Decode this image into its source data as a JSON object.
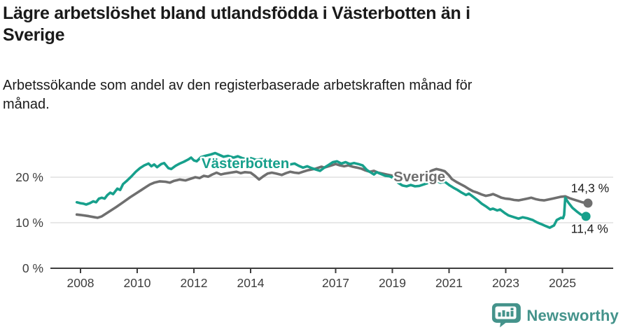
{
  "header": {
    "title_line1": "Lägre arbetslöshet bland utlandsfödda i Västerbotten än i",
    "title_line2": "Sverige",
    "subtitle_line1": "Arbetssökande som andel av den registerbaserade arbetskraften månad för",
    "subtitle_line2": "månad."
  },
  "chart_data": {
    "type": "line",
    "title": "Lägre arbetslöshet bland utlandsfödda i Västerbotten än i Sverige",
    "subtitle": "Arbetssökande som andel av den registerbaserade arbetskraften månad för månad.",
    "unit": "%",
    "grid": "horizontal",
    "x_axis": {
      "tick_years": [
        2008,
        2010,
        2012,
        2014,
        2017,
        2019,
        2021,
        2023,
        2025
      ]
    },
    "y_axis": {
      "ticks": [
        {
          "value": 0,
          "label": "0 %"
        },
        {
          "value": 10,
          "label": "10 %"
        },
        {
          "value": 20,
          "label": "20 %"
        }
      ],
      "range": [
        0,
        28
      ],
      "gridlines_at": [
        10,
        20
      ]
    },
    "colors": {
      "vasterbotten": "#17a08c",
      "sverige": "#6f6f6f",
      "axis": "#3d3d3d",
      "gridline": "#d9d9d9",
      "value_label": "#1d1d1d"
    },
    "series": [
      {
        "name": "Sverige",
        "color": "#6f6f6f",
        "label_anchor": [
          2019.04,
          19.1
        ],
        "end_label": "14,3 %",
        "end_label_anchor": [
          2025.3,
          16.7
        ],
        "points": [
          [
            2007.87,
            11.8
          ],
          [
            2008.0,
            11.7
          ],
          [
            2008.25,
            11.5
          ],
          [
            2008.5,
            11.2
          ],
          [
            2008.6,
            11.1
          ],
          [
            2008.75,
            11.4
          ],
          [
            2009.0,
            12.4
          ],
          [
            2009.25,
            13.4
          ],
          [
            2009.5,
            14.5
          ],
          [
            2009.75,
            15.6
          ],
          [
            2010.0,
            16.6
          ],
          [
            2010.15,
            17.2
          ],
          [
            2010.3,
            17.8
          ],
          [
            2010.45,
            18.4
          ],
          [
            2010.6,
            18.8
          ],
          [
            2010.8,
            19.1
          ],
          [
            2011.0,
            19.0
          ],
          [
            2011.15,
            18.8
          ],
          [
            2011.3,
            19.2
          ],
          [
            2011.5,
            19.5
          ],
          [
            2011.7,
            19.3
          ],
          [
            2011.9,
            19.7
          ],
          [
            2012.05,
            20.0
          ],
          [
            2012.2,
            19.8
          ],
          [
            2012.35,
            20.3
          ],
          [
            2012.5,
            20.1
          ],
          [
            2012.65,
            20.6
          ],
          [
            2012.8,
            21.0
          ],
          [
            2012.95,
            20.6
          ],
          [
            2013.1,
            20.8
          ],
          [
            2013.3,
            21.0
          ],
          [
            2013.5,
            21.2
          ],
          [
            2013.65,
            20.9
          ],
          [
            2013.8,
            21.1
          ],
          [
            2014.0,
            21.0
          ],
          [
            2014.15,
            20.3
          ],
          [
            2014.3,
            19.5
          ],
          [
            2014.45,
            20.2
          ],
          [
            2014.6,
            20.8
          ],
          [
            2014.75,
            21.0
          ],
          [
            2014.9,
            20.8
          ],
          [
            2015.1,
            20.5
          ],
          [
            2015.25,
            20.9
          ],
          [
            2015.4,
            21.2
          ],
          [
            2015.55,
            21.0
          ],
          [
            2015.7,
            20.9
          ],
          [
            2015.85,
            21.2
          ],
          [
            2016.0,
            21.5
          ],
          [
            2016.15,
            21.7
          ],
          [
            2016.3,
            21.9
          ],
          [
            2016.5,
            22.3
          ],
          [
            2016.6,
            22.1
          ],
          [
            2016.75,
            22.4
          ],
          [
            2016.9,
            22.7
          ],
          [
            2017.0,
            22.9
          ],
          [
            2017.15,
            22.6
          ],
          [
            2017.3,
            22.4
          ],
          [
            2017.45,
            22.6
          ],
          [
            2017.6,
            22.3
          ],
          [
            2017.75,
            22.1
          ],
          [
            2017.9,
            21.9
          ],
          [
            2018.05,
            21.5
          ],
          [
            2018.2,
            21.2
          ],
          [
            2018.35,
            21.4
          ],
          [
            2018.5,
            21.0
          ],
          [
            2018.65,
            20.8
          ],
          [
            2018.8,
            20.6
          ],
          [
            2018.95,
            20.4
          ],
          [
            2019.1,
            20.2
          ],
          [
            2019.3,
            20.0
          ],
          [
            2019.5,
            19.9
          ],
          [
            2019.7,
            20.0
          ],
          [
            2019.9,
            20.2
          ],
          [
            2020.1,
            20.5
          ],
          [
            2020.25,
            21.0
          ],
          [
            2020.4,
            21.5
          ],
          [
            2020.55,
            21.8
          ],
          [
            2020.7,
            21.6
          ],
          [
            2020.85,
            21.3
          ],
          [
            2021.0,
            20.4
          ],
          [
            2021.1,
            19.6
          ],
          [
            2021.25,
            19.0
          ],
          [
            2021.4,
            18.5
          ],
          [
            2021.55,
            18.0
          ],
          [
            2021.7,
            17.4
          ],
          [
            2021.85,
            16.9
          ],
          [
            2022.0,
            16.6
          ],
          [
            2022.15,
            16.2
          ],
          [
            2022.3,
            15.9
          ],
          [
            2022.45,
            16.1
          ],
          [
            2022.55,
            16.3
          ],
          [
            2022.7,
            15.9
          ],
          [
            2022.85,
            15.5
          ],
          [
            2023.0,
            15.3
          ],
          [
            2023.15,
            15.2
          ],
          [
            2023.3,
            15.0
          ],
          [
            2023.45,
            14.9
          ],
          [
            2023.6,
            15.1
          ],
          [
            2023.75,
            15.3
          ],
          [
            2023.9,
            15.5
          ],
          [
            2024.05,
            15.2
          ],
          [
            2024.2,
            15.0
          ],
          [
            2024.35,
            14.9
          ],
          [
            2024.5,
            15.1
          ],
          [
            2024.65,
            15.3
          ],
          [
            2024.8,
            15.5
          ],
          [
            2024.95,
            15.7
          ],
          [
            2025.1,
            15.8
          ],
          [
            2025.25,
            15.4
          ],
          [
            2025.4,
            15.1
          ],
          [
            2025.55,
            14.8
          ],
          [
            2025.7,
            14.5
          ],
          [
            2025.9,
            14.3
          ]
        ]
      },
      {
        "name": "Västerbotten",
        "color": "#17a08c",
        "label_anchor": [
          2012.27,
          22.0
        ],
        "end_label": "11,4 %",
        "end_label_anchor": [
          2025.3,
          7.8
        ],
        "points": [
          [
            2007.87,
            14.5
          ],
          [
            2008.0,
            14.3
          ],
          [
            2008.1,
            14.2
          ],
          [
            2008.2,
            14.0
          ],
          [
            2008.33,
            14.3
          ],
          [
            2008.45,
            14.7
          ],
          [
            2008.55,
            14.5
          ],
          [
            2008.65,
            15.3
          ],
          [
            2008.75,
            15.5
          ],
          [
            2008.85,
            15.3
          ],
          [
            2008.95,
            16.1
          ],
          [
            2009.05,
            16.6
          ],
          [
            2009.15,
            16.3
          ],
          [
            2009.3,
            17.5
          ],
          [
            2009.4,
            17.2
          ],
          [
            2009.5,
            18.5
          ],
          [
            2009.65,
            19.3
          ],
          [
            2009.8,
            20.2
          ],
          [
            2009.95,
            21.2
          ],
          [
            2010.1,
            22.0
          ],
          [
            2010.25,
            22.6
          ],
          [
            2010.4,
            23.0
          ],
          [
            2010.5,
            22.4
          ],
          [
            2010.6,
            22.8
          ],
          [
            2010.7,
            22.2
          ],
          [
            2010.85,
            22.9
          ],
          [
            2010.95,
            23.1
          ],
          [
            2011.1,
            22.0
          ],
          [
            2011.2,
            21.8
          ],
          [
            2011.35,
            22.5
          ],
          [
            2011.5,
            23.0
          ],
          [
            2011.65,
            23.4
          ],
          [
            2011.8,
            23.9
          ],
          [
            2011.9,
            24.3
          ],
          [
            2012.0,
            23.7
          ],
          [
            2012.1,
            23.5
          ],
          [
            2012.25,
            24.4
          ],
          [
            2012.4,
            24.7
          ],
          [
            2012.6,
            25.0
          ],
          [
            2012.75,
            25.3
          ],
          [
            2012.9,
            24.9
          ],
          [
            2013.05,
            24.5
          ],
          [
            2013.2,
            24.7
          ],
          [
            2013.4,
            24.3
          ],
          [
            2013.55,
            24.6
          ],
          [
            2013.7,
            24.2
          ],
          [
            2013.85,
            24.0
          ],
          [
            2014.0,
            24.2
          ],
          [
            2014.2,
            23.8
          ],
          [
            2014.4,
            24.0
          ],
          [
            2014.6,
            23.6
          ],
          [
            2014.8,
            23.3
          ],
          [
            2015.0,
            23.5
          ],
          [
            2015.2,
            23.1
          ],
          [
            2015.4,
            22.8
          ],
          [
            2015.55,
            23.0
          ],
          [
            2015.7,
            22.5
          ],
          [
            2015.85,
            22.1
          ],
          [
            2016.0,
            22.4
          ],
          [
            2016.15,
            22.0
          ],
          [
            2016.3,
            21.7
          ],
          [
            2016.45,
            21.4
          ],
          [
            2016.6,
            22.1
          ],
          [
            2016.75,
            22.7
          ],
          [
            2016.9,
            23.3
          ],
          [
            2017.05,
            23.5
          ],
          [
            2017.2,
            23.0
          ],
          [
            2017.35,
            23.3
          ],
          [
            2017.5,
            22.9
          ],
          [
            2017.65,
            23.1
          ],
          [
            2017.8,
            22.9
          ],
          [
            2017.95,
            22.6
          ],
          [
            2018.1,
            21.6
          ],
          [
            2018.25,
            21.0
          ],
          [
            2018.35,
            20.6
          ],
          [
            2018.45,
            21.1
          ],
          [
            2018.6,
            20.7
          ],
          [
            2018.75,
            20.3
          ],
          [
            2018.9,
            20.2
          ],
          [
            2019.05,
            19.8
          ],
          [
            2019.2,
            18.8
          ],
          [
            2019.35,
            18.2
          ],
          [
            2019.5,
            18.0
          ],
          [
            2019.65,
            18.3
          ],
          [
            2019.8,
            18.0
          ],
          [
            2019.95,
            18.1
          ],
          [
            2020.1,
            18.4
          ],
          [
            2020.25,
            18.7
          ],
          [
            2020.4,
            19.0
          ],
          [
            2020.55,
            19.2
          ],
          [
            2020.7,
            18.8
          ],
          [
            2020.85,
            19.0
          ],
          [
            2021.0,
            18.3
          ],
          [
            2021.15,
            17.7
          ],
          [
            2021.3,
            17.2
          ],
          [
            2021.45,
            16.6
          ],
          [
            2021.6,
            16.1
          ],
          [
            2021.7,
            16.4
          ],
          [
            2021.85,
            15.7
          ],
          [
            2022.0,
            15.0
          ],
          [
            2022.15,
            14.2
          ],
          [
            2022.3,
            13.6
          ],
          [
            2022.45,
            12.9
          ],
          [
            2022.55,
            13.1
          ],
          [
            2022.7,
            12.7
          ],
          [
            2022.8,
            12.9
          ],
          [
            2022.95,
            12.2
          ],
          [
            2023.1,
            11.6
          ],
          [
            2023.25,
            11.3
          ],
          [
            2023.45,
            10.9
          ],
          [
            2023.6,
            11.2
          ],
          [
            2023.75,
            11.0
          ],
          [
            2023.95,
            10.6
          ],
          [
            2024.1,
            10.1
          ],
          [
            2024.25,
            9.7
          ],
          [
            2024.4,
            9.3
          ],
          [
            2024.55,
            8.9
          ],
          [
            2024.7,
            9.4
          ],
          [
            2024.8,
            10.6
          ],
          [
            2024.95,
            11.1
          ],
          [
            2025.02,
            11.0
          ],
          [
            2025.06,
            11.7
          ],
          [
            2025.1,
            15.5
          ],
          [
            2025.2,
            14.5
          ],
          [
            2025.35,
            13.3
          ],
          [
            2025.5,
            12.5
          ],
          [
            2025.65,
            11.8
          ],
          [
            2025.83,
            11.4
          ]
        ]
      }
    ]
  },
  "footer": {
    "brand_name": "Newsworthy",
    "brand_color": "#44938b",
    "logo_icon": "speech-bubble-bar-chart"
  }
}
